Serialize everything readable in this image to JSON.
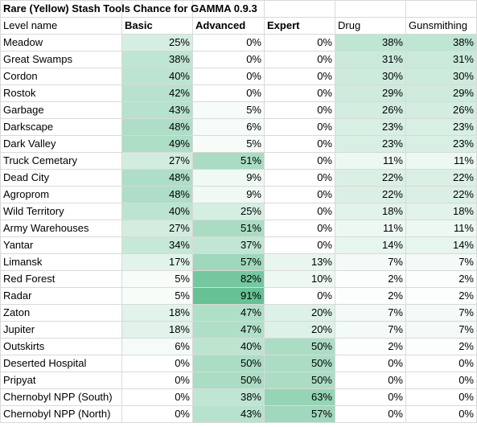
{
  "title": "Rare (Yellow) Stash Tools Chance for GAMMA 0.9.3",
  "headers": [
    "Level name",
    "Basic",
    "Advanced",
    "Expert",
    "Drug",
    "Gunsmithing"
  ],
  "header_bold": [
    false,
    true,
    true,
    true,
    false,
    false
  ],
  "accent_color": "#57bb8a",
  "rows": [
    {
      "name": "Meadow",
      "values": [
        "25%",
        "0%",
        "0%",
        "38%",
        "38%"
      ]
    },
    {
      "name": "Great Swamps",
      "values": [
        "38%",
        "0%",
        "0%",
        "31%",
        "31%"
      ]
    },
    {
      "name": "Cordon",
      "values": [
        "40%",
        "0%",
        "0%",
        "30%",
        "30%"
      ]
    },
    {
      "name": "Rostok",
      "values": [
        "42%",
        "0%",
        "0%",
        "29%",
        "29%"
      ]
    },
    {
      "name": "Garbage",
      "values": [
        "43%",
        "5%",
        "0%",
        "26%",
        "26%"
      ]
    },
    {
      "name": "Darkscape",
      "values": [
        "48%",
        "6%",
        "0%",
        "23%",
        "23%"
      ]
    },
    {
      "name": "Dark Valley",
      "values": [
        "49%",
        "5%",
        "0%",
        "23%",
        "23%"
      ]
    },
    {
      "name": "Truck Cemetary",
      "values": [
        "27%",
        "51%",
        "0%",
        "11%",
        "11%"
      ]
    },
    {
      "name": "Dead City",
      "values": [
        "48%",
        "9%",
        "0%",
        "22%",
        "22%"
      ]
    },
    {
      "name": "Agroprom",
      "values": [
        "48%",
        "9%",
        "0%",
        "22%",
        "22%"
      ]
    },
    {
      "name": "Wild Territory",
      "values": [
        "40%",
        "25%",
        "0%",
        "18%",
        "18%"
      ]
    },
    {
      "name": "Army Warehouses",
      "values": [
        "27%",
        "51%",
        "0%",
        "11%",
        "11%"
      ]
    },
    {
      "name": "Yantar",
      "values": [
        "34%",
        "37%",
        "0%",
        "14%",
        "14%"
      ]
    },
    {
      "name": "Limansk",
      "values": [
        "17%",
        "57%",
        "13%",
        "7%",
        "7%"
      ]
    },
    {
      "name": "Red Forest",
      "values": [
        "5%",
        "82%",
        "10%",
        "2%",
        "2%"
      ]
    },
    {
      "name": "Radar",
      "values": [
        "5%",
        "91%",
        "0%",
        "2%",
        "2%"
      ]
    },
    {
      "name": "Zaton",
      "values": [
        "18%",
        "47%",
        "20%",
        "7%",
        "7%"
      ]
    },
    {
      "name": "Jupiter",
      "values": [
        "18%",
        "47%",
        "20%",
        "7%",
        "7%"
      ]
    },
    {
      "name": "Outskirts",
      "values": [
        "6%",
        "40%",
        "50%",
        "2%",
        "2%"
      ]
    },
    {
      "name": "Deserted Hospital",
      "values": [
        "0%",
        "50%",
        "50%",
        "0%",
        "0%"
      ]
    },
    {
      "name": "Pripyat",
      "values": [
        "0%",
        "50%",
        "50%",
        "0%",
        "0%"
      ]
    },
    {
      "name": "Chernobyl NPP (South)",
      "values": [
        "0%",
        "38%",
        "63%",
        "0%",
        "0%"
      ]
    },
    {
      "name": "Chernobyl NPP (North)",
      "values": [
        "0%",
        "43%",
        "57%",
        "0%",
        "0%"
      ]
    }
  ]
}
